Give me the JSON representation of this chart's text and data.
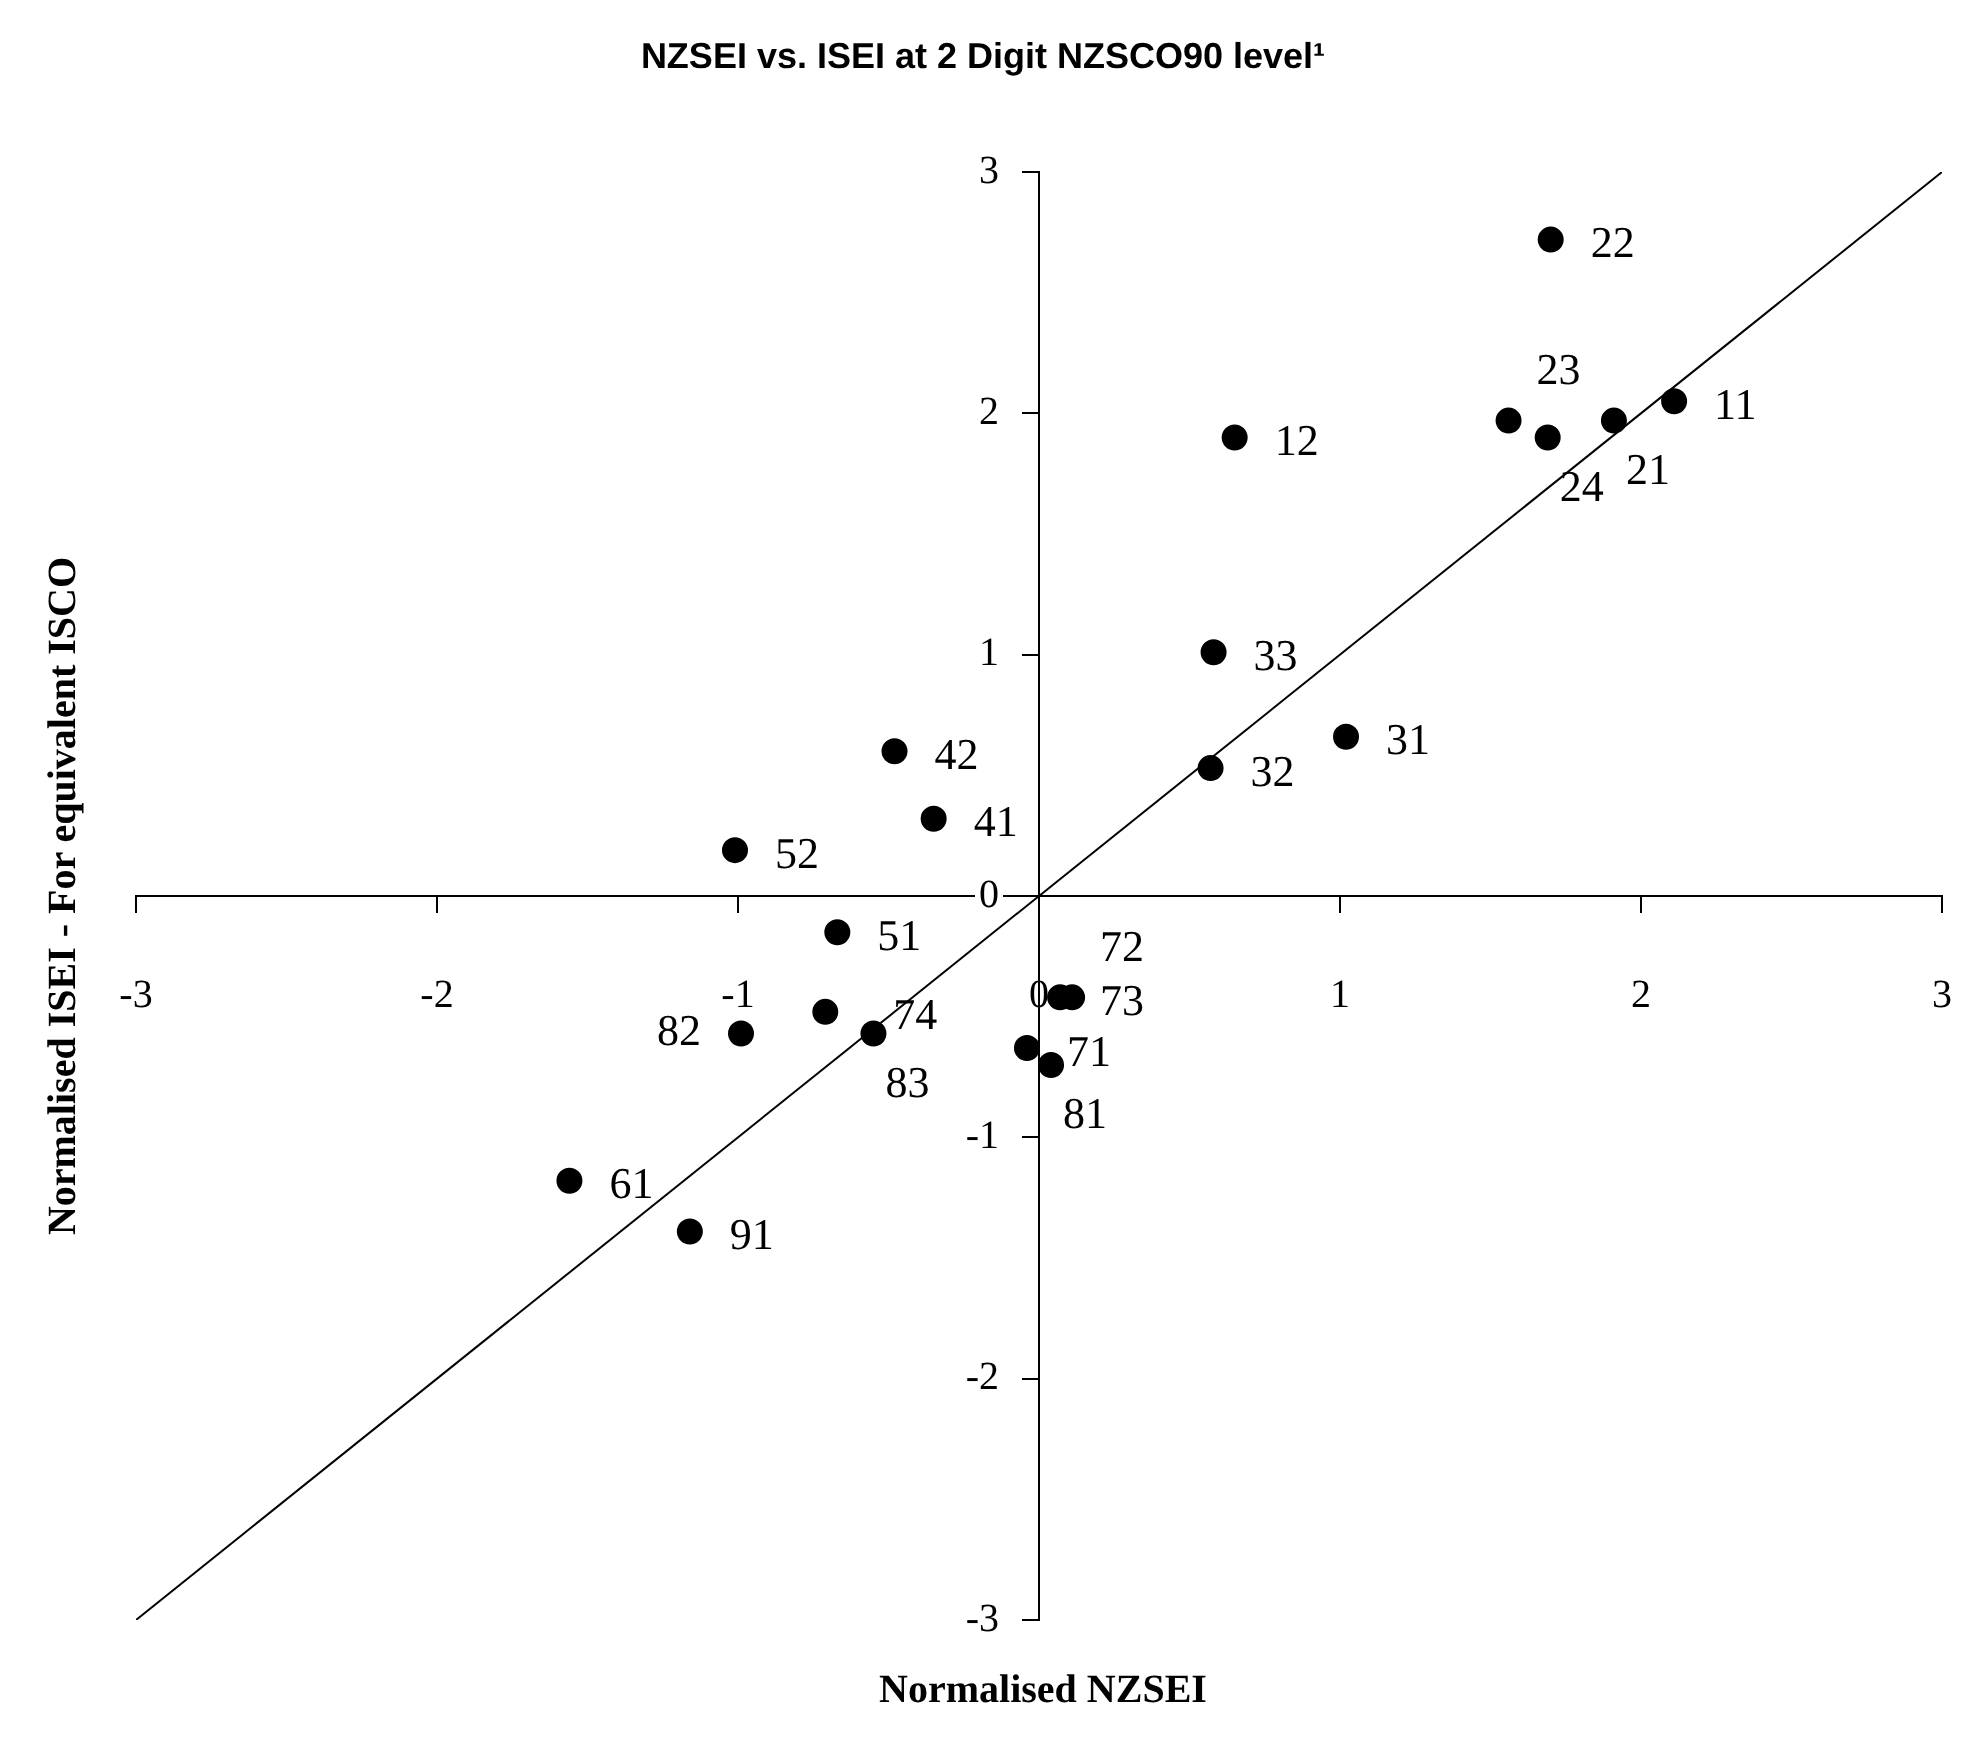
{
  "chart_data": {
    "type": "scatter",
    "title": "NZSEI vs. ISEI at 2 Digit NZSCO90 level¹",
    "xlabel": "Normalised NZSEI",
    "ylabel": "Normalised ISEI - For equivalent ISCO",
    "xlim": [
      -3,
      3
    ],
    "ylim": [
      -3,
      3
    ],
    "xticks": [
      -3,
      -2,
      -1,
      0,
      1,
      2,
      3
    ],
    "yticks": [
      -3,
      -2,
      -1,
      0,
      1,
      2,
      3
    ],
    "grid": false,
    "legend": false,
    "series": [
      {
        "color": "#000000",
        "marker": "circle",
        "x": [
          1.7,
          0.65,
          1.56,
          1.69,
          1.91,
          2.11,
          0.58,
          1.02,
          0.57,
          -0.48,
          -0.35,
          -1.01,
          -0.67,
          -0.71,
          -0.99,
          -0.55,
          0.07,
          0.11,
          -0.04,
          0.04,
          -1.56,
          -1.16
        ],
        "values": [
          2.72,
          1.9,
          1.97,
          1.9,
          1.97,
          2.05,
          1.01,
          0.66,
          0.53,
          0.6,
          0.32,
          0.19,
          -0.15,
          -0.48,
          -0.57,
          -0.57,
          -0.42,
          -0.42,
          -0.63,
          -0.7,
          -1.18,
          -1.39
        ]
      },
      {
        "type": "line",
        "color": "#000000",
        "marker": "none",
        "x": [
          -3,
          3
        ],
        "values": [
          -3,
          3
        ]
      }
    ],
    "annotations": [
      {
        "text": "22",
        "x": 1.7,
        "y": 2.72
      },
      {
        "text": "12",
        "x": 0.65,
        "y": 1.9
      },
      {
        "text": "23",
        "x": 1.56,
        "y": 1.97
      },
      {
        "text": "24",
        "x": 1.69,
        "y": 1.9
      },
      {
        "text": "21",
        "x": 1.91,
        "y": 1.97
      },
      {
        "text": "11",
        "x": 2.11,
        "y": 2.05
      },
      {
        "text": "33",
        "x": 0.58,
        "y": 1.01
      },
      {
        "text": "31",
        "x": 1.02,
        "y": 0.66
      },
      {
        "text": "32",
        "x": 0.57,
        "y": 0.53
      },
      {
        "text": "42",
        "x": -0.48,
        "y": 0.6
      },
      {
        "text": "41",
        "x": -0.35,
        "y": 0.32
      },
      {
        "text": "52",
        "x": -1.01,
        "y": 0.19
      },
      {
        "text": "51",
        "x": -0.67,
        "y": -0.15
      },
      {
        "text": "74",
        "x": -0.71,
        "y": -0.48
      },
      {
        "text": "82",
        "x": -0.99,
        "y": -0.57
      },
      {
        "text": "83",
        "x": -0.55,
        "y": -0.57
      },
      {
        "text": "73",
        "x": 0.07,
        "y": -0.42
      },
      {
        "text": "72",
        "x": 0.11,
        "y": -0.42
      },
      {
        "text": "71",
        "x": -0.04,
        "y": -0.63
      },
      {
        "text": "81",
        "x": 0.04,
        "y": -0.7
      },
      {
        "text": "61",
        "x": -1.56,
        "y": -1.18
      },
      {
        "text": "91",
        "x": -1.16,
        "y": -1.39
      }
    ]
  }
}
